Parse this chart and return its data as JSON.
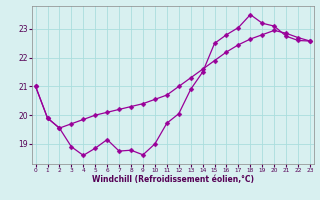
{
  "line1_x": [
    0,
    1,
    2,
    3,
    4,
    5,
    6,
    7,
    8,
    9,
    10,
    11,
    12,
    13,
    14,
    15,
    16,
    17,
    18,
    19,
    20,
    21,
    22,
    23
  ],
  "line1_y": [
    21.0,
    19.9,
    19.55,
    18.9,
    18.6,
    18.85,
    19.15,
    18.75,
    18.78,
    18.62,
    19.0,
    19.72,
    20.05,
    20.9,
    21.5,
    22.5,
    22.8,
    23.05,
    23.5,
    23.2,
    23.1,
    22.75,
    22.6,
    22.58
  ],
  "line2_x": [
    0,
    1,
    2,
    3,
    4,
    5,
    6,
    7,
    8,
    9,
    10,
    11,
    12,
    13,
    14,
    15,
    16,
    17,
    18,
    19,
    20,
    21,
    22,
    23
  ],
  "line2_y": [
    21.0,
    19.9,
    19.55,
    19.7,
    19.85,
    20.0,
    20.1,
    20.2,
    20.3,
    20.4,
    20.55,
    20.7,
    21.0,
    21.3,
    21.6,
    21.9,
    22.2,
    22.45,
    22.65,
    22.8,
    22.95,
    22.85,
    22.7,
    22.58
  ],
  "line_color": "#990099",
  "bg_color": "#d8f0f0",
  "grid_color": "#aadddd",
  "xlabel": "Windchill (Refroidissement éolien,°C)",
  "xlim": [
    -0.3,
    23.3
  ],
  "ylim": [
    18.3,
    23.8
  ],
  "yticks": [
    19,
    20,
    21,
    22,
    23
  ],
  "xticks": [
    0,
    1,
    2,
    3,
    4,
    5,
    6,
    7,
    8,
    9,
    10,
    11,
    12,
    13,
    14,
    15,
    16,
    17,
    18,
    19,
    20,
    21,
    22,
    23
  ],
  "marker": "D",
  "markersize": 2.5,
  "linewidth": 0.9
}
